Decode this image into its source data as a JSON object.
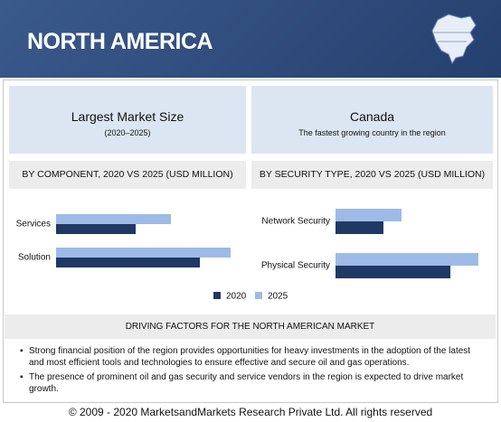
{
  "header": {
    "title": "NORTH AMERICA"
  },
  "panels": [
    {
      "title": "Largest Market Size",
      "subtitle": "(2020–2025)"
    },
    {
      "title": "Canada",
      "subtitle": "The fastest growing country in the region"
    }
  ],
  "chart_data": [
    {
      "type": "bar",
      "orientation": "horizontal",
      "title": "BY COMPONENT, 2020 VS 2025 (USD MILLION)",
      "categories": [
        "Services",
        "Solution"
      ],
      "series": [
        {
          "name": "2020",
          "color": "#1f3864",
          "values": [
            88,
            159
          ]
        },
        {
          "name": "2025",
          "color": "#9dbbe6",
          "values": [
            127,
            193
          ]
        }
      ]
    },
    {
      "type": "bar",
      "orientation": "horizontal",
      "title": "BY SECURITY TYPE, 2020 VS 2025 (USD MILLION)",
      "categories": [
        "Network Security",
        "Physical Security"
      ],
      "series": [
        {
          "name": "2020",
          "color": "#1f3864",
          "values": [
            53,
            127
          ]
        },
        {
          "name": "2025",
          "color": "#9dbbe6",
          "values": [
            73,
            158
          ]
        }
      ]
    }
  ],
  "drivers": {
    "title": "DRIVING FACTORS FOR THE NORTH AMERICAN MARKET",
    "items": [
      "Strong financial position of the region provides opportunities for heavy investments in the adoption of the latest and most efficient tools and technologies to ensure effective and secure oil and gas operations.",
      "The presence of prominent oil and gas security and service vendors in the region is expected to drive market growth."
    ]
  },
  "footer": "© 2009 - 2020 MarketsandMarkets Research Private Ltd. All rights reserved"
}
